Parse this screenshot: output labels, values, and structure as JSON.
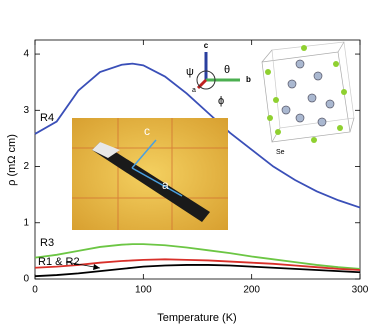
{
  "chart_data": {
    "type": "line",
    "x_label": "Temperature (K)",
    "y_label": "ρ (mΩ cm)",
    "x": [
      0,
      20,
      40,
      60,
      80,
      90,
      100,
      120,
      140,
      160,
      180,
      200,
      220,
      240,
      260,
      280,
      300
    ],
    "series": [
      {
        "name": "R4",
        "color": "#3a4fb8",
        "values": [
          2.58,
          2.8,
          3.35,
          3.68,
          3.81,
          3.83,
          3.8,
          3.6,
          3.3,
          2.95,
          2.6,
          2.3,
          2.0,
          1.76,
          1.56,
          1.4,
          1.27
        ]
      },
      {
        "name": "R3",
        "color": "#6cc644",
        "values": [
          0.38,
          0.43,
          0.5,
          0.57,
          0.61,
          0.62,
          0.62,
          0.6,
          0.56,
          0.51,
          0.46,
          0.4,
          0.35,
          0.3,
          0.25,
          0.21,
          0.18
        ]
      },
      {
        "name": "R1 & R2",
        "color": "#d8302a",
        "values": [
          0.2,
          0.22,
          0.25,
          0.29,
          0.32,
          0.33,
          0.34,
          0.35,
          0.34,
          0.33,
          0.31,
          0.29,
          0.27,
          0.24,
          0.21,
          0.18,
          0.16
        ]
      },
      {
        "color": "#000000",
        "values": [
          0.05,
          0.07,
          0.1,
          0.14,
          0.18,
          0.2,
          0.22,
          0.24,
          0.25,
          0.25,
          0.24,
          0.22,
          0.2,
          0.18,
          0.16,
          0.14,
          0.12
        ]
      }
    ],
    "xlim": [
      0,
      300
    ],
    "xticks": [
      0,
      100,
      200,
      300
    ],
    "ylim": [
      0,
      4.25
    ],
    "yticks": [
      0,
      1,
      2,
      3,
      4
    ],
    "annotations": [
      "c",
      "a",
      "c",
      "b",
      "a",
      "ψ",
      "θ",
      "ϕ",
      "Se"
    ]
  }
}
